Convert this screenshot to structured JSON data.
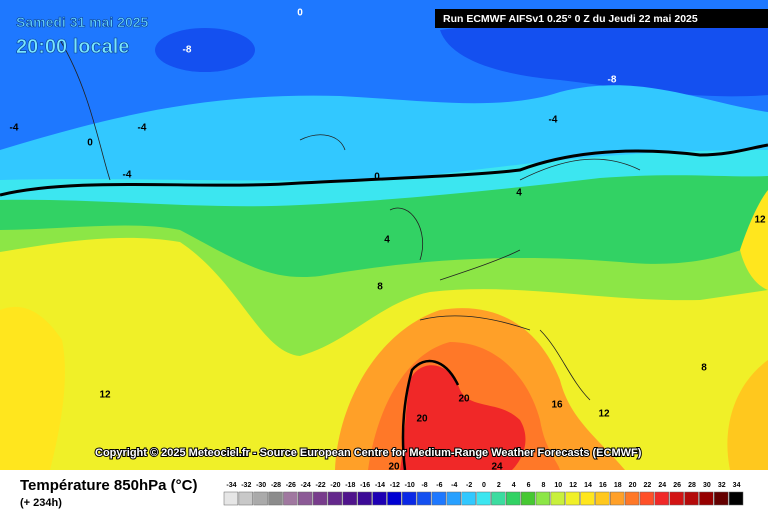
{
  "header": {
    "date": "Samedi 31 mai 2025",
    "time": "20:00 locale",
    "run": "Run ECMWF AIFSv1 0.25° 0 Z du Jeudi 22 mai 2025"
  },
  "copyright": "Copyright © 2025 Meteociel.fr - Source European Centre for Medium-Range Weather Forecasts (ECMWF)",
  "footer": {
    "title": "Température 850hPa (°C)",
    "lead": "(+ 234h)"
  },
  "legend": {
    "values": [
      -34,
      -32,
      -30,
      -28,
      -26,
      -24,
      -22,
      -20,
      -18,
      -16,
      -14,
      -12,
      -10,
      -8,
      -6,
      -4,
      -2,
      0,
      2,
      4,
      6,
      8,
      10,
      12,
      14,
      16,
      18,
      20,
      22,
      24,
      26,
      28,
      30,
      32,
      34
    ],
    "colors": [
      "#e6e6e6",
      "#c8c8c8",
      "#aaaaaa",
      "#8c8c8c",
      "#a078a0",
      "#8c5a96",
      "#783c8c",
      "#64288c",
      "#50148c",
      "#3c0a96",
      "#1e00b4",
      "#0000d2",
      "#0a28e6",
      "#1450f0",
      "#1e78ff",
      "#28a0ff",
      "#32c8ff",
      "#3ce6f0",
      "#3cdca0",
      "#32d264",
      "#46c832",
      "#8ce646",
      "#c8f03c",
      "#f0f028",
      "#ffe61e",
      "#ffc81e",
      "#ffa028",
      "#ff7828",
      "#ff5028",
      "#f02828",
      "#d21414",
      "#b40a0a",
      "#960000",
      "#640000",
      "#000000"
    ]
  },
  "map": {
    "contour_labels": [
      -4,
      -4,
      -8,
      0,
      -8,
      -4,
      -4,
      0,
      4,
      8,
      12,
      20,
      20,
      16,
      12,
      12,
      8,
      4,
      0,
      24,
      20
    ]
  }
}
